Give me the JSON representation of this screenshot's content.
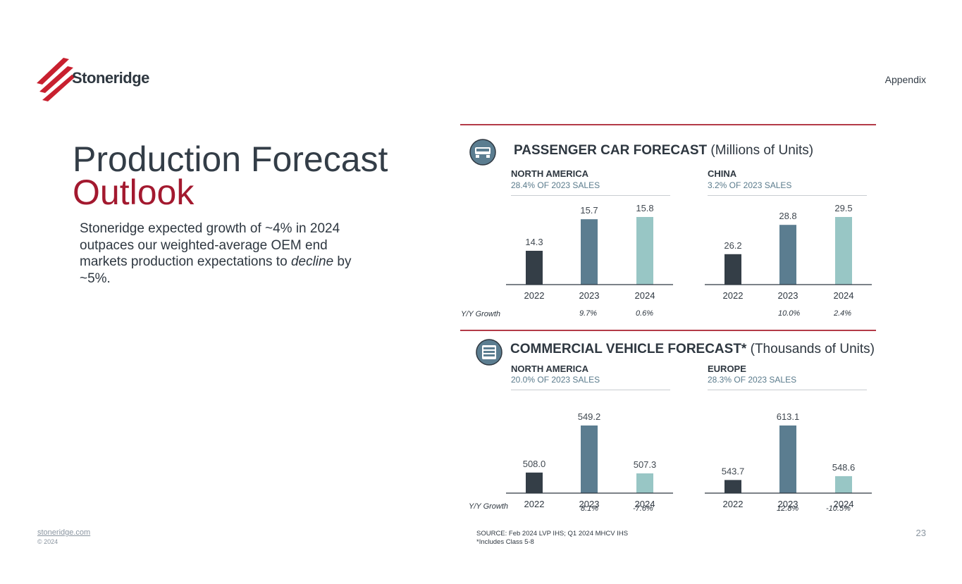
{
  "header": {
    "logo_text": "Stoneridge",
    "section_label": "Appendix"
  },
  "title": {
    "line1": "Production Forecast",
    "line2": "Outlook"
  },
  "body": {
    "part1": "Stoneridge expected growth of ~4% in 2024 outpaces our weighted-average OEM end markets production expectations to ",
    "emphasis": "decline",
    "part2": " by ~5%."
  },
  "passenger": {
    "title": "PASSENGER CAR FORECAST",
    "unit": "(Millions of Units)",
    "growth_label": "Y/Y Growth"
  },
  "commercial": {
    "title": "COMMERCIAL VEHICLE FORECAST*",
    "unit": "(Thousands of Units)",
    "growth_label": "Y/Y Growth"
  },
  "colors": {
    "y2022": "#343e47",
    "y2023": "#5b7d90",
    "y2024": "#98c6c5",
    "accent": "#a3192f",
    "rule": "#b33a48"
  },
  "chart_data": [
    {
      "type": "bar",
      "region": "NORTH AMERICA",
      "share": "28.4% OF 2023 SALES",
      "categories": [
        "2022",
        "2023",
        "2024"
      ],
      "values": [
        14.3,
        15.7,
        15.8
      ],
      "labels": [
        "14.3",
        "15.7",
        "15.8"
      ],
      "growth": [
        "",
        "9.7%",
        "0.6%"
      ],
      "ylim": [
        12.8,
        15.8
      ]
    },
    {
      "type": "bar",
      "region": "CHINA",
      "share": "3.2% OF 2023 SALES",
      "categories": [
        "2022",
        "2023",
        "2024"
      ],
      "values": [
        26.2,
        28.8,
        29.5
      ],
      "labels": [
        "26.2",
        "28.8",
        "29.5"
      ],
      "growth": [
        "",
        "10.0%",
        "2.4%"
      ],
      "ylim": [
        23.5,
        29.5
      ]
    },
    {
      "type": "bar",
      "region": "NORTH AMERICA",
      "share": "20.0% OF 2023 SALES",
      "categories": [
        "2022",
        "2023",
        "2024"
      ],
      "values": [
        508.0,
        549.2,
        507.3
      ],
      "labels": [
        "508.0",
        "549.2",
        "507.3"
      ],
      "growth": [
        "",
        "8.1%",
        "-7.6%"
      ],
      "ylim": [
        490,
        549.2
      ]
    },
    {
      "type": "bar",
      "region": "EUROPE",
      "share": "28.3% OF 2023 SALES",
      "categories": [
        "2022",
        "2023",
        "2024"
      ],
      "values": [
        543.7,
        613.1,
        548.6
      ],
      "labels": [
        "543.7",
        "613.1",
        "548.6"
      ],
      "growth": [
        "",
        "12.8%",
        "-10.5%"
      ],
      "ylim": [
        527,
        613.1
      ]
    }
  ],
  "footer": {
    "link": "stoneridge.com",
    "copyright": "© 2024",
    "source": "SOURCE: Feb 2024 LVP IHS; Q1 2024 MHCV IHS",
    "note": "*Includes Class 5-8",
    "page": "23"
  }
}
